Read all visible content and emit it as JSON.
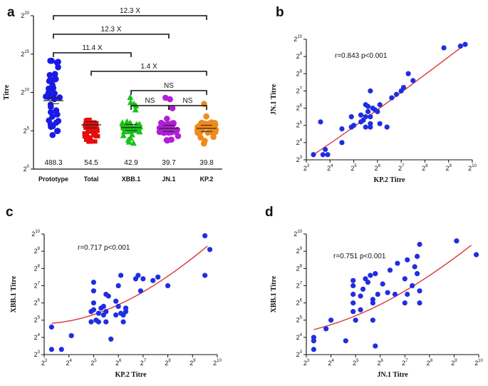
{
  "chart_data": [
    {
      "panel": "a",
      "type": "scatter",
      "ylabel": "Titre",
      "y_scale": "log2",
      "ylim": [
        0,
        20
      ],
      "yticks": [
        0,
        5,
        10,
        15,
        20
      ],
      "groups": [
        {
          "name": "Prototype",
          "color": "#1a1ae6",
          "marker": "circle",
          "gmt": "488.3",
          "gmt_log2": 8.93,
          "range_log2": [
            3.3,
            14.5
          ]
        },
        {
          "name": "Total",
          "color": "#e60d0d",
          "marker": "square",
          "gmt": "54.5",
          "gmt_log2": 5.77,
          "range_log2": [
            3.3,
            6.6
          ]
        },
        {
          "name": "XBB.1",
          "color": "#19c219",
          "marker": "triangle",
          "gmt": "42.9",
          "gmt_log2": 5.42,
          "range_log2": [
            3.3,
            9.7
          ]
        },
        {
          "name": "JN.1",
          "color": "#b01fd6",
          "marker": "circle",
          "gmt": "39.7",
          "gmt_log2": 5.31,
          "range_log2": [
            3.3,
            9.7
          ]
        },
        {
          "name": "KP.2",
          "color": "#f08a1a",
          "marker": "circle",
          "gmt": "39.8",
          "gmt_log2": 5.31,
          "range_log2": [
            3.3,
            9.7
          ]
        }
      ],
      "comparisons": [
        {
          "from": "Prototype",
          "to": "KP.2",
          "label": "12.3 X"
        },
        {
          "from": "Prototype",
          "to": "JN.1",
          "label": "12.3 X"
        },
        {
          "from": "Prototype",
          "to": "XBB.1",
          "label": "11.4 X"
        },
        {
          "from": "Total",
          "to": "KP.2",
          "label": "1.4 X"
        },
        {
          "from": "XBB.1",
          "to": "KP.2",
          "label": "NS"
        },
        {
          "from": "XBB.1",
          "to": "JN.1",
          "label": "NS"
        },
        {
          "from": "JN.1",
          "to": "KP.2",
          "label": "NS"
        }
      ]
    },
    {
      "panel": "b",
      "type": "scatter",
      "xlabel": "KP.2 Titre",
      "ylabel": "JN.1 Titre",
      "xlim": [
        3,
        10
      ],
      "ylim": [
        3,
        10
      ],
      "ticks": [
        3,
        4,
        5,
        6,
        7,
        8,
        9,
        10
      ],
      "annotation": "r=0.843 p<0.001",
      "fit": [
        [
          3.3,
          3.3
        ],
        [
          5,
          4.85
        ],
        [
          7,
          6.9
        ],
        [
          9.6,
          9.6
        ]
      ],
      "points": [
        [
          3.3,
          3.3
        ],
        [
          3.6,
          5.2
        ],
        [
          3.7,
          3.3
        ],
        [
          3.8,
          3.6
        ],
        [
          3.9,
          3.3
        ],
        [
          4.5,
          4.8
        ],
        [
          4.5,
          4.0
        ],
        [
          4.9,
          5.5
        ],
        [
          4.9,
          4.9
        ],
        [
          5.0,
          5.0
        ],
        [
          5.3,
          5.6
        ],
        [
          5.3,
          5.2
        ],
        [
          5.4,
          5.3
        ],
        [
          5.5,
          6.2
        ],
        [
          5.5,
          5.5
        ],
        [
          5.5,
          4.9
        ],
        [
          5.6,
          6.1
        ],
        [
          5.6,
          5.8
        ],
        [
          5.7,
          7.0
        ],
        [
          5.7,
          5.5
        ],
        [
          5.7,
          4.9
        ],
        [
          5.7,
          5.1
        ],
        [
          5.8,
          6.0
        ],
        [
          5.9,
          5.9
        ],
        [
          6.0,
          5.8
        ],
        [
          6.1,
          5.1
        ],
        [
          6.1,
          6.2
        ],
        [
          6.4,
          4.9
        ],
        [
          6.6,
          6.6
        ],
        [
          6.8,
          6.8
        ],
        [
          7.0,
          7.0
        ],
        [
          7.1,
          7.2
        ],
        [
          7.3,
          8.0
        ],
        [
          7.5,
          7.6
        ],
        [
          8.8,
          9.5
        ],
        [
          9.5,
          9.6
        ],
        [
          9.7,
          9.7
        ]
      ]
    },
    {
      "panel": "c",
      "type": "scatter",
      "xlabel": "KP.2 Titre",
      "ylabel": "XBB.1 Titre",
      "xlim": [
        3,
        10
      ],
      "ylim": [
        3,
        10
      ],
      "ticks": [
        3,
        4,
        5,
        6,
        7,
        8,
        9,
        10
      ],
      "annotation": "r=0.717  p<0.001",
      "fit": [
        [
          3.3,
          4.82
        ],
        [
          5,
          5.0
        ],
        [
          7,
          6.2
        ],
        [
          9.6,
          9.3
        ]
      ],
      "points": [
        [
          3.3,
          3.3
        ],
        [
          3.3,
          4.6
        ],
        [
          3.7,
          3.3
        ],
        [
          4.1,
          4.1
        ],
        [
          4.9,
          4.9
        ],
        [
          4.9,
          5.5
        ],
        [
          5.0,
          7.2
        ],
        [
          5.0,
          6.7
        ],
        [
          5.0,
          6.0
        ],
        [
          5.0,
          5.6
        ],
        [
          5.1,
          5.0
        ],
        [
          5.2,
          5.4
        ],
        [
          5.2,
          4.9
        ],
        [
          5.3,
          5.7
        ],
        [
          5.4,
          5.8
        ],
        [
          5.4,
          5.3
        ],
        [
          5.5,
          5.5
        ],
        [
          5.5,
          4.9
        ],
        [
          5.5,
          6.5
        ],
        [
          5.6,
          6.4
        ],
        [
          5.7,
          3.9
        ],
        [
          5.9,
          5.3
        ],
        [
          5.9,
          6.1
        ],
        [
          6.0,
          7.0
        ],
        [
          6.0,
          5.8
        ],
        [
          6.1,
          7.6
        ],
        [
          6.1,
          5.4
        ],
        [
          6.2,
          5.3
        ],
        [
          6.2,
          4.9
        ],
        [
          6.3,
          5.7
        ],
        [
          6.3,
          5.5
        ],
        [
          6.7,
          7.4
        ],
        [
          6.8,
          7.6
        ],
        [
          6.9,
          6.7
        ],
        [
          7.0,
          7.4
        ],
        [
          7.4,
          7.3
        ],
        [
          7.6,
          7.5
        ],
        [
          8.0,
          7.0
        ],
        [
          9.5,
          9.9
        ],
        [
          9.5,
          7.6
        ],
        [
          9.7,
          9.1
        ]
      ]
    },
    {
      "panel": "d",
      "type": "scatter",
      "xlabel": "JN.1 Titre",
      "ylabel": "XBB.1 Titre",
      "xlim": [
        3,
        10
      ],
      "ylim": [
        3,
        10
      ],
      "ticks": [
        3,
        4,
        5,
        6,
        7,
        8,
        9,
        10
      ],
      "annotation": "r=0.751  p<0.001",
      "fit": [
        [
          3.3,
          4.45
        ],
        [
          5,
          5.05
        ],
        [
          7,
          6.35
        ],
        [
          9.7,
          9.35
        ]
      ],
      "points": [
        [
          3.3,
          3.3
        ],
        [
          3.3,
          3.8
        ],
        [
          3.3,
          4.0
        ],
        [
          3.8,
          4.5
        ],
        [
          4.0,
          5.0
        ],
        [
          4.6,
          3.8
        ],
        [
          4.9,
          5.5
        ],
        [
          4.9,
          6.0
        ],
        [
          4.9,
          7.0
        ],
        [
          4.9,
          7.3
        ],
        [
          4.9,
          6.5
        ],
        [
          5.0,
          5.0
        ],
        [
          5.2,
          6.4
        ],
        [
          5.2,
          5.6
        ],
        [
          5.3,
          6.8
        ],
        [
          5.4,
          7.4
        ],
        [
          5.5,
          7.2
        ],
        [
          5.6,
          7.6
        ],
        [
          5.7,
          6.2
        ],
        [
          5.7,
          6.0
        ],
        [
          5.7,
          5.0
        ],
        [
          5.8,
          3.5
        ],
        [
          5.8,
          7.7
        ],
        [
          5.9,
          6.5
        ],
        [
          6.1,
          7.1
        ],
        [
          6.3,
          6.6
        ],
        [
          6.4,
          7.9
        ],
        [
          6.6,
          6.5
        ],
        [
          6.7,
          8.3
        ],
        [
          7.0,
          7.4
        ],
        [
          7.0,
          6.0
        ],
        [
          7.1,
          6.5
        ],
        [
          7.1,
          8.5
        ],
        [
          7.3,
          7.0
        ],
        [
          7.4,
          8.1
        ],
        [
          7.5,
          7.7
        ],
        [
          7.5,
          8.7
        ],
        [
          7.6,
          6.7
        ],
        [
          7.6,
          6.0
        ],
        [
          7.6,
          9.4
        ],
        [
          9.1,
          9.6
        ],
        [
          9.9,
          8.8
        ]
      ]
    }
  ]
}
